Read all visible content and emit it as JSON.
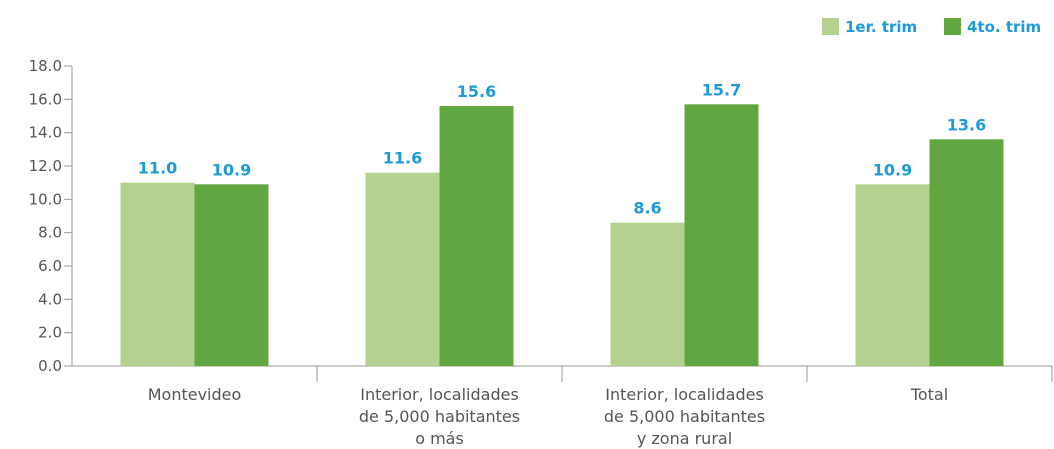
{
  "chart_data": {
    "type": "bar",
    "title": "",
    "xlabel": "",
    "ylabel": "",
    "ylim": [
      0,
      18
    ],
    "ytick_step": 2,
    "ytick_labels": [
      "0.0",
      "2.0",
      "4.0",
      "6.0",
      "8.0",
      "10.0",
      "12.0",
      "14.0",
      "16.0",
      "18.0"
    ],
    "grid": false,
    "legend_position": "top-right",
    "categories": [
      [
        "Montevideo"
      ],
      [
        "Interior, localidades",
        "de 5,000 habitantes",
        "o más"
      ],
      [
        "Interior, localidades",
        "de 5,000 habitantes",
        "y zona rural"
      ],
      [
        "Total"
      ]
    ],
    "series": [
      {
        "name": "1er. trim",
        "color": "#b5d18f",
        "values": [
          11.0,
          11.6,
          8.6,
          10.9
        ],
        "labels": [
          "11.0",
          "11.6",
          "8.6",
          "10.9"
        ]
      },
      {
        "name": "4to. trim",
        "color": "#62a641",
        "values": [
          10.9,
          15.6,
          15.7,
          13.6
        ],
        "labels": [
          "10.9",
          "15.6",
          "15.7",
          "13.6"
        ]
      }
    ],
    "data_label_color": "#1e9ad6",
    "legend_text_color": "#1e9ad6"
  }
}
